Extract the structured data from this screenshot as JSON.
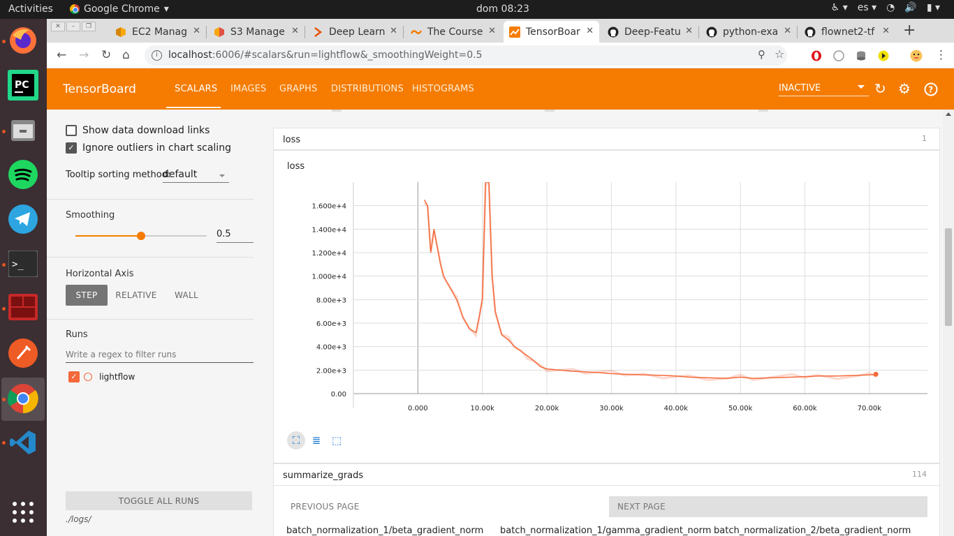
{
  "system": {
    "activities": "Activities",
    "app_name": "Google Chrome",
    "clock": "dom 08:23",
    "keyboard": "es"
  },
  "tabs": [
    {
      "title": "EC2 Manag",
      "icon": "aws-icon"
    },
    {
      "title": "S3 Manage",
      "icon": "aws-icon"
    },
    {
      "title": "Deep Learn",
      "icon": "coursera-icon"
    },
    {
      "title": "The Course",
      "icon": "course-icon"
    },
    {
      "title": "TensorBoar",
      "icon": "tensorboard-icon",
      "active": true
    },
    {
      "title": "Deep-Featu",
      "icon": "github-icon"
    },
    {
      "title": "python-exa",
      "icon": "github-icon"
    },
    {
      "title": "flownet2-tf",
      "icon": "github-icon"
    }
  ],
  "address": {
    "host": "localhost",
    "rest": ":6006/#scalars&run=lightflow&_smoothingWeight=0.5"
  },
  "header": {
    "brand": "TensorBoard",
    "tabs": [
      "SCALARS",
      "IMAGES",
      "GRAPHS",
      "DISTRIBUTIONS",
      "HISTOGRAMS"
    ],
    "status": "INACTIVE"
  },
  "sidebar": {
    "show_download": "Show data download links",
    "ignore_outliers": "Ignore outliers in chart scaling",
    "tooltip_label": "Tooltip sorting method:",
    "tooltip_value": "default",
    "smoothing_label": "Smoothing",
    "smoothing_value": "0.5",
    "smoothing_fraction": 0.5,
    "haxis_label": "Horizontal Axis",
    "haxis_options": [
      "STEP",
      "RELATIVE",
      "WALL"
    ],
    "runs_label": "Runs",
    "filter_placeholder": "Write a regex to filter runs",
    "run_name": "lightflow",
    "toggle_all": "TOGGLE ALL RUNS",
    "logdir": "./logs/"
  },
  "main": {
    "loss_section": {
      "title": "loss",
      "count": "1"
    },
    "grads_section": {
      "title": "summarize_grads",
      "count": "114"
    },
    "prev_page": "PREVIOUS PAGE",
    "next_page": "NEXT PAGE",
    "tags": [
      "batch_normalization_1/beta_gradient_norm",
      "batch_normalization_1/gamma_gradient_norm",
      "batch_normalization_2/beta_gradient_norm"
    ]
  },
  "chart_data": {
    "type": "line",
    "title": "loss",
    "xlabel": "",
    "ylabel": "",
    "x_ticks": [
      "0.000",
      "10.00k",
      "20.00k",
      "30.00k",
      "40.00k",
      "50.00k",
      "60.00k",
      "70.00k"
    ],
    "y_ticks": [
      "0.00",
      "2.00e+3",
      "4.00e+3",
      "6.00e+3",
      "8.00e+3",
      "1.000e+4",
      "1.200e+4",
      "1.400e+4",
      "1.600e+4"
    ],
    "xlim": [
      -10000,
      79000
    ],
    "ylim": [
      0,
      18000
    ],
    "color": "#f4683a",
    "series": [
      {
        "x": [
          1000,
          1500,
          2000,
          2500,
          3000,
          3500,
          4000,
          5000,
          6000,
          7000,
          8000,
          9000,
          9500,
          10000,
          10500,
          11000,
          11500,
          12000,
          13000,
          14000,
          15000,
          16000,
          17000,
          18000,
          19000,
          20000,
          22000,
          24000,
          26000,
          28000,
          30000,
          32000,
          35000,
          38000,
          40000,
          42000,
          45000,
          48000,
          50000,
          52000,
          55000,
          58000,
          60000,
          62000,
          65000,
          68000,
          70000,
          71000
        ],
        "y": [
          16500,
          16000,
          12000,
          14000,
          12500,
          11000,
          10000,
          9000,
          8000,
          6500,
          5500,
          5200,
          6500,
          8000,
          18000,
          18000,
          10000,
          7000,
          5000,
          4600,
          4000,
          3600,
          3200,
          2800,
          2300,
          2100,
          2000,
          1900,
          1850,
          1800,
          1700,
          1650,
          1600,
          1550,
          1500,
          1400,
          1350,
          1300,
          1400,
          1300,
          1350,
          1400,
          1450,
          1500,
          1500,
          1550,
          1600,
          1650
        ]
      }
    ]
  }
}
